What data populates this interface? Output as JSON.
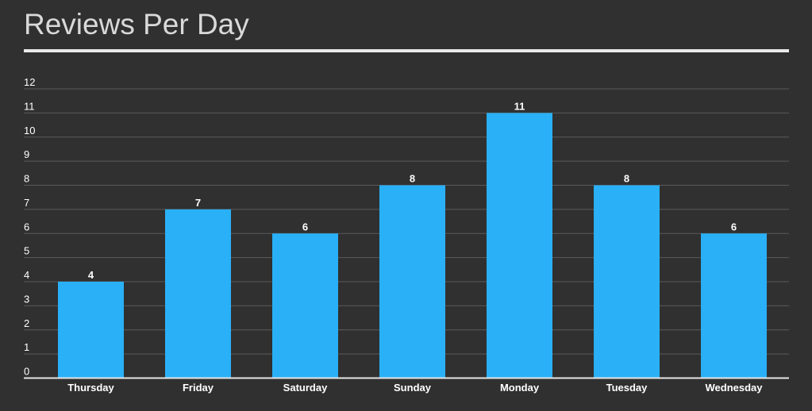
{
  "header": {
    "title": "Reviews Per Day"
  },
  "colors": {
    "background": "#303030",
    "bar": "#29b0f7",
    "grid": "#5a5a5a",
    "axis": "#e6e6e6",
    "text": "#ffffff",
    "title": "#d9d9d9"
  },
  "chart_data": {
    "type": "bar",
    "categories": [
      "Thursday",
      "Friday",
      "Saturday",
      "Sunday",
      "Monday",
      "Tuesday",
      "Wednesday"
    ],
    "values": [
      4,
      7,
      6,
      8,
      11,
      8,
      6
    ],
    "yticks": [
      "0",
      "1",
      "2",
      "3",
      "4",
      "5",
      "6",
      "7",
      "8",
      "9",
      "10",
      "11",
      "12"
    ],
    "ylim": [
      0,
      12
    ],
    "grid": true,
    "legend": "none",
    "data_labels": true
  }
}
